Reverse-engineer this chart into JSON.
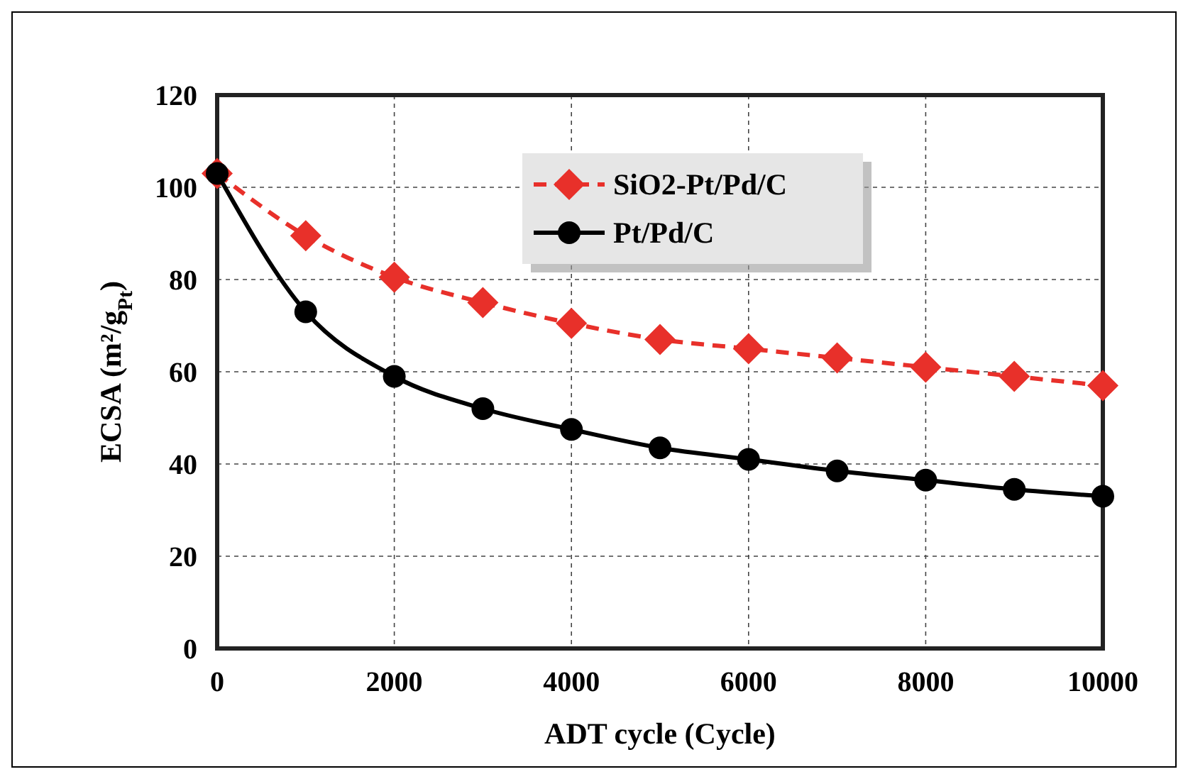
{
  "chart_data": {
    "type": "line",
    "xlabel": "ADT cycle (Cycle)",
    "ylabel": "ECSA (m²/g$_{Pt}$)",
    "x": [
      0,
      1000,
      2000,
      3000,
      4000,
      5000,
      6000,
      7000,
      8000,
      9000,
      10000
    ],
    "xlim": [
      0,
      10000
    ],
    "xticks": [
      0,
      2000,
      4000,
      6000,
      8000,
      10000
    ],
    "ylim": [
      0,
      120
    ],
    "yticks": [
      0,
      20,
      40,
      60,
      80,
      100,
      120
    ],
    "grid": true,
    "legend": "top",
    "series": [
      {
        "name": "SiO2-Pt/Pd/C",
        "color": "#e8302a",
        "marker": "diamond",
        "line_style": "dashed",
        "values": [
          103,
          89.5,
          80.5,
          75,
          70.5,
          67,
          65,
          63,
          61,
          59,
          57
        ]
      },
      {
        "name": "Pt/Pd/C",
        "color": "#000000",
        "marker": "circle",
        "line_style": "solid",
        "values": [
          103,
          73,
          59,
          52,
          47.5,
          43.5,
          41,
          38.5,
          36.5,
          34.5,
          33
        ]
      }
    ]
  }
}
